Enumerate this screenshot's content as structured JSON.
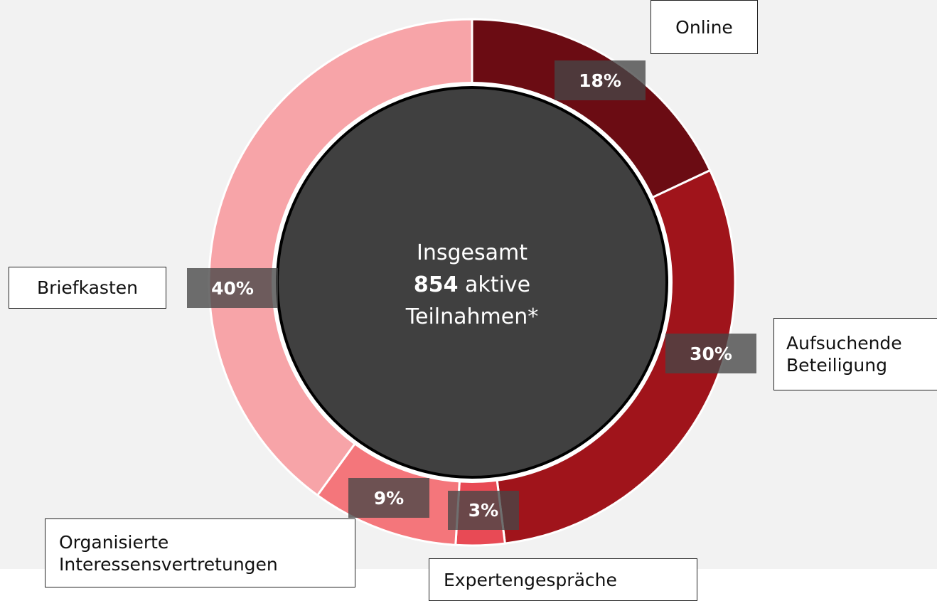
{
  "chart_data": {
    "type": "donut",
    "categories": [
      "Online",
      "Aufsuchende Beteiligung",
      "Expertengespräche",
      "Organisierte Interessensvertretungen",
      "Briefkasten"
    ],
    "values": [
      18,
      30,
      3,
      9,
      40
    ],
    "value_labels": [
      "18%",
      "30%",
      "3%",
      "9%",
      "40%"
    ],
    "colors": [
      "#6b0c13",
      "#a0141b",
      "#e84a55",
      "#f4767b",
      "#f7a4a8"
    ],
    "center": {
      "line1": "Insgesamt",
      "total": 854,
      "line2": "aktive",
      "line3": "Teilnahmen*"
    }
  }
}
